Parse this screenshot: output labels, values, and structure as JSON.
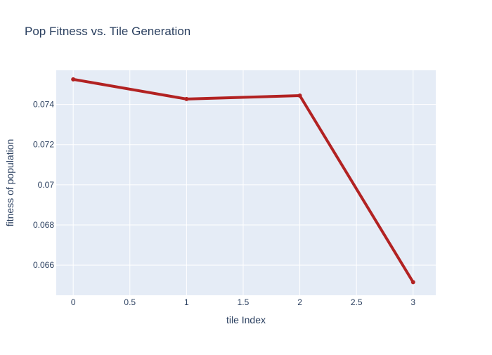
{
  "chart_data": {
    "type": "line",
    "title": "Pop Fitness vs. Tile Generation",
    "xlabel": "tile Index",
    "ylabel": "fitness of population",
    "x": [
      0,
      1,
      2,
      3
    ],
    "series": [
      {
        "values": [
          0.07525,
          0.07427,
          0.07444,
          0.06515
        ],
        "color": "#b22222"
      }
    ],
    "xlim": [
      -0.15,
      3.2
    ],
    "ylim": [
      0.0645,
      0.0757
    ],
    "xticks": [
      0,
      0.5,
      1,
      1.5,
      2,
      2.5,
      3
    ],
    "xtick_labels": [
      "0",
      "0.5",
      "1",
      "1.5",
      "2",
      "2.5",
      "3"
    ],
    "yticks": [
      0.066,
      0.068,
      0.07,
      0.072,
      0.074
    ],
    "ytick_labels": [
      "0.066",
      "0.068",
      "0.07",
      "0.072",
      "0.074"
    ],
    "grid": true,
    "plot_background": "#e5ecf6",
    "gridline_color": "#ffffff",
    "text_color": "#2a3f5f"
  }
}
